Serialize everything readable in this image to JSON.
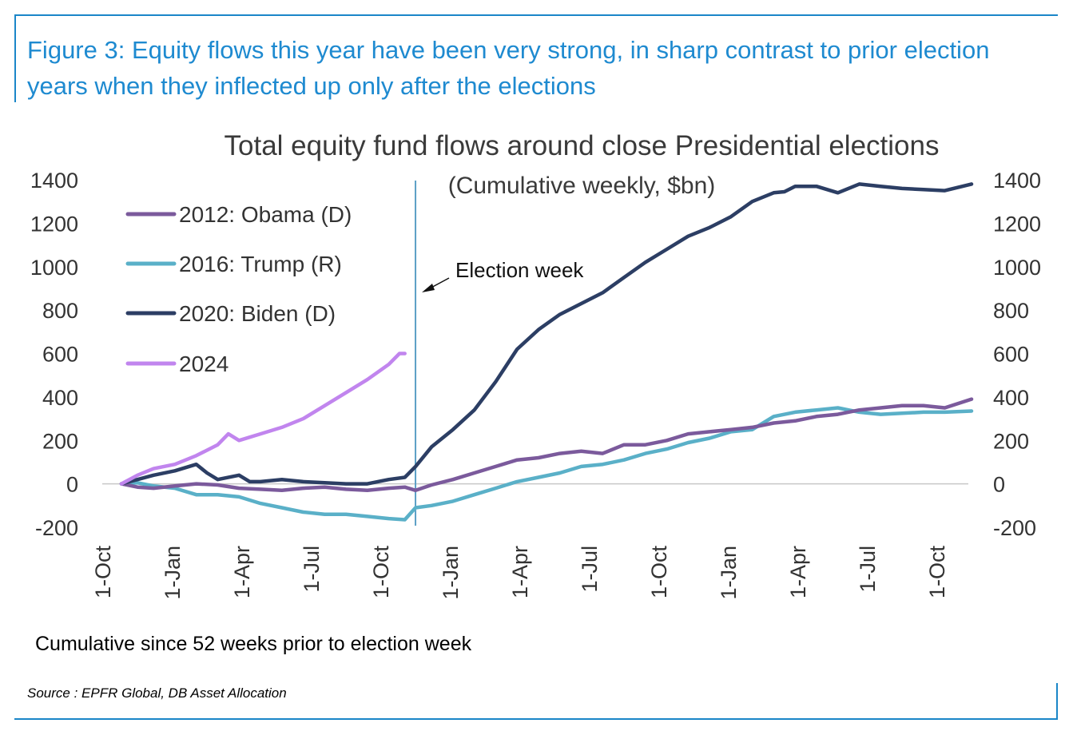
{
  "figure_title": "Figure 3: Equity flows this year have been very strong, in sharp contrast to prior election years when they inflected up only after the elections",
  "note": "Cumulative since 52 weeks prior to election week",
  "source": "Source : EPFR Global, DB Asset Allocation",
  "colors": {
    "frame": "#1a86c8",
    "title": "#1e8ad0",
    "election_line": "#5b9fc6"
  },
  "chart_data": {
    "type": "line",
    "title": "Total equity fund flows around close Presidential elections",
    "subtitle": "(Cumulative weekly, $bn)",
    "x_tick_labels": [
      "1-Oct",
      "1-Jan",
      "1-Apr",
      "1-Jul",
      "1-Oct",
      "1-Jan",
      "1-Apr",
      "1-Jul",
      "1-Oct",
      "1-Jan",
      "1-Apr",
      "1-Jul",
      "1-Oct"
    ],
    "x_tick_weeks": [
      0,
      13,
      26,
      39,
      52,
      65,
      78,
      91,
      104,
      117,
      130,
      143,
      156
    ],
    "xlim": [
      0,
      159
    ],
    "ylim": [
      -200,
      1400
    ],
    "y_ticks": [
      -200,
      0,
      200,
      400,
      600,
      800,
      1000,
      1200,
      1400
    ],
    "annotation": {
      "text": "Election week",
      "week": 55
    },
    "series": [
      {
        "name": "2012: Obama (D)",
        "color": "#7b5a9c",
        "x": [
          0,
          3,
          6,
          10,
          14,
          18,
          22,
          26,
          30,
          34,
          38,
          42,
          46,
          50,
          53,
          55,
          58,
          62,
          66,
          70,
          74,
          78,
          82,
          86,
          90,
          94,
          98,
          102,
          106,
          110,
          114,
          118,
          122,
          126,
          130,
          134,
          138,
          142,
          146,
          150,
          154,
          159
        ],
        "y": [
          0,
          -15,
          -20,
          -10,
          0,
          -5,
          -20,
          -25,
          -30,
          -20,
          -15,
          -25,
          -30,
          -20,
          -15,
          -30,
          -5,
          20,
          50,
          80,
          110,
          120,
          140,
          150,
          140,
          180,
          180,
          200,
          230,
          240,
          250,
          260,
          280,
          290,
          310,
          320,
          340,
          350,
          360,
          360,
          350,
          390
        ]
      },
      {
        "name": "2016: Trump (R)",
        "color": "#5ab0c8",
        "x": [
          0,
          3,
          6,
          10,
          14,
          18,
          22,
          26,
          30,
          34,
          38,
          42,
          46,
          50,
          53,
          55,
          58,
          62,
          66,
          70,
          74,
          78,
          82,
          86,
          90,
          94,
          98,
          102,
          106,
          110,
          114,
          118,
          122,
          126,
          130,
          134,
          138,
          142,
          146,
          150,
          154,
          159
        ],
        "y": [
          0,
          5,
          -10,
          -20,
          -50,
          -50,
          -60,
          -90,
          -110,
          -130,
          -140,
          -140,
          -150,
          -160,
          -165,
          -110,
          -100,
          -80,
          -50,
          -20,
          10,
          30,
          50,
          80,
          90,
          110,
          140,
          160,
          190,
          210,
          240,
          250,
          310,
          330,
          340,
          350,
          330,
          320,
          325,
          330,
          330,
          335
        ]
      },
      {
        "name": "2020: Biden (D)",
        "color": "#2c3e64",
        "x": [
          0,
          3,
          6,
          10,
          14,
          16,
          18,
          22,
          24,
          26,
          30,
          34,
          38,
          42,
          46,
          50,
          53,
          55,
          58,
          62,
          66,
          70,
          74,
          78,
          82,
          86,
          90,
          94,
          98,
          102,
          106,
          110,
          114,
          118,
          122,
          124,
          126,
          130,
          134,
          138,
          142,
          146,
          150,
          154,
          159
        ],
        "y": [
          0,
          20,
          40,
          60,
          90,
          50,
          20,
          40,
          10,
          10,
          20,
          10,
          5,
          0,
          0,
          20,
          30,
          80,
          170,
          250,
          340,
          470,
          620,
          710,
          780,
          830,
          880,
          950,
          1020,
          1080,
          1140,
          1180,
          1230,
          1300,
          1340,
          1345,
          1370,
          1370,
          1340,
          1380,
          1370,
          1360,
          1355,
          1350,
          1380
        ]
      },
      {
        "name": "2024",
        "color": "#c185ee",
        "x": [
          0,
          3,
          6,
          10,
          14,
          18,
          20,
          22,
          26,
          30,
          34,
          38,
          42,
          46,
          50,
          52,
          53
        ],
        "y": [
          0,
          40,
          70,
          90,
          130,
          180,
          230,
          200,
          230,
          260,
          300,
          360,
          420,
          480,
          550,
          600,
          600
        ]
      }
    ]
  }
}
